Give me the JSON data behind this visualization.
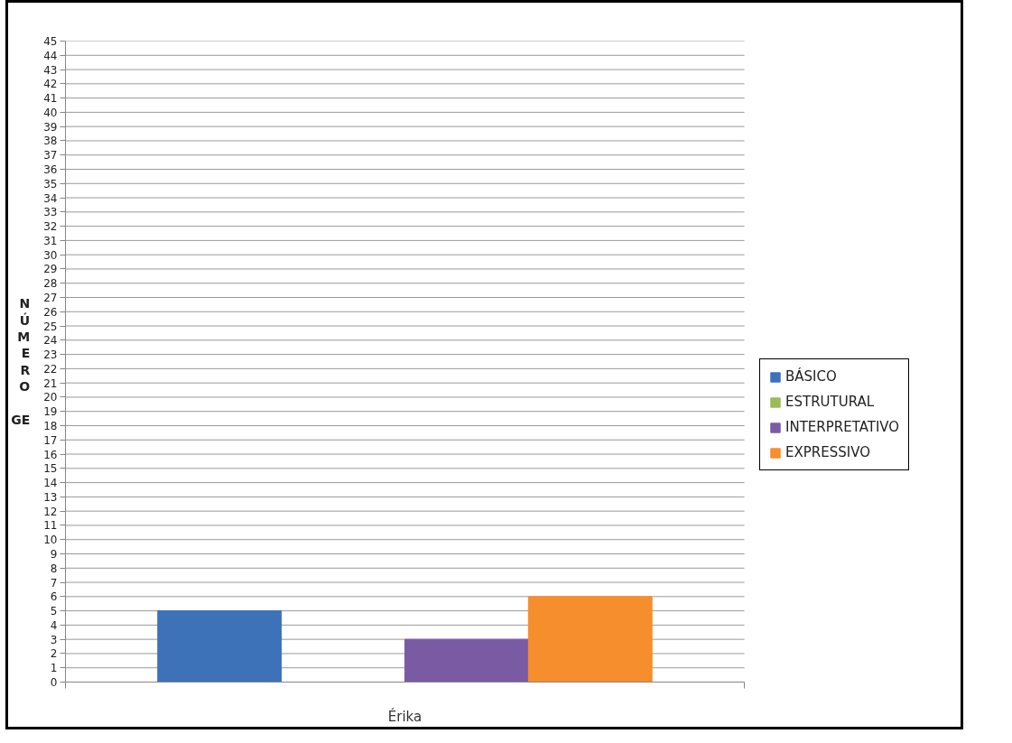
{
  "chart_data": {
    "type": "bar",
    "categories": [
      "Érika"
    ],
    "series": [
      {
        "name": "BÁSICO",
        "color": "#3d72b8",
        "values": [
          5
        ]
      },
      {
        "name": "ESTRUTURAL",
        "color": "#9bbb59",
        "values": [
          0
        ]
      },
      {
        "name": "INTERPRETATIVO",
        "color": "#7a5ba3",
        "values": [
          3
        ]
      },
      {
        "name": "EXPRESSIVO",
        "color": "#f68e2e",
        "values": [
          6
        ]
      }
    ],
    "ylabel": "NÚMERO GE",
    "ylim": [
      0,
      45
    ],
    "yticks": [
      0,
      1,
      2,
      3,
      4,
      5,
      6,
      7,
      8,
      9,
      10,
      11,
      12,
      13,
      14,
      15,
      16,
      17,
      18,
      19,
      20,
      21,
      22,
      23,
      24,
      25,
      26,
      27,
      28,
      29,
      30,
      31,
      32,
      33,
      34,
      35,
      36,
      37,
      38,
      39,
      40,
      41,
      42,
      43,
      44,
      45
    ],
    "grid": "y",
    "legend": "right"
  }
}
